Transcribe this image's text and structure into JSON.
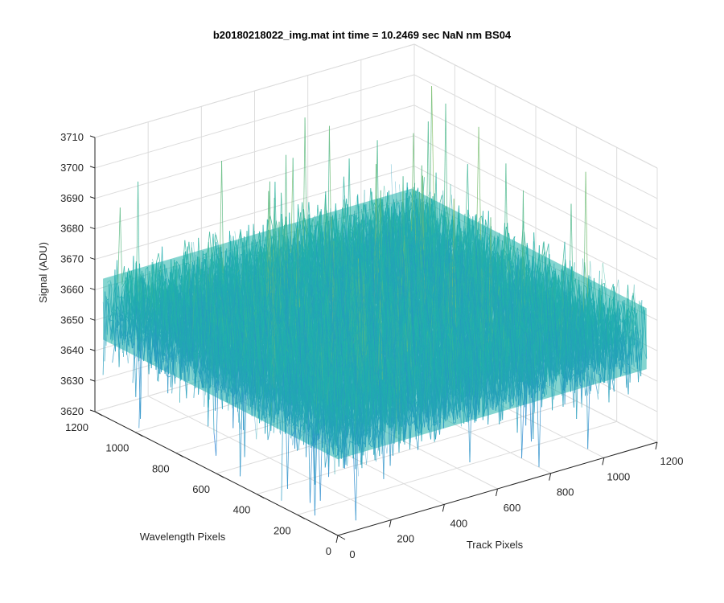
{
  "chart_data": {
    "type": "surface",
    "title": "b20180218022_img.mat int time = 10.2469 sec  NaN nm BS04",
    "xlabel": "Track Pixels",
    "ylabel": "Wavelength Pixels",
    "zlabel": "Signal (ADU)",
    "xlim": [
      0,
      1200
    ],
    "ylim": [
      0,
      1200
    ],
    "zlim": [
      3620,
      3710
    ],
    "x_ticks": [
      "0",
      "200",
      "400",
      "600",
      "800",
      "1000",
      "1200"
    ],
    "y_ticks": [
      "0",
      "200",
      "400",
      "600",
      "800",
      "1000",
      "1200"
    ],
    "z_ticks": [
      "3620",
      "3630",
      "3640",
      "3650",
      "3660",
      "3670",
      "3680",
      "3690",
      "3700",
      "3710"
    ],
    "grid": true,
    "surface": {
      "x_range": [
        0,
        1160
      ],
      "y_range": [
        0,
        1160
      ],
      "mean_signal": 3655,
      "typical_min": 3625,
      "typical_max": 3700,
      "peak_max": 3710,
      "description_colormap": "parula"
    },
    "colors": {
      "low": "#2e7fd8",
      "mid": "#20b2aa",
      "high": "#c8c83a",
      "axis": "#262626",
      "grid": "#dcdcdc"
    }
  }
}
